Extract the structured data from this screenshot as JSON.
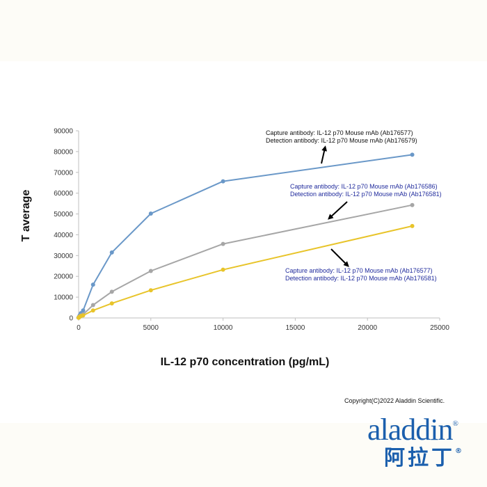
{
  "chart_data": {
    "type": "line",
    "xlabel": "IL-12 p70 concentration (pg/mL)",
    "ylabel": "T average",
    "xlim": [
      0,
      25000
    ],
    "ylim": [
      0,
      90000
    ],
    "x_ticks": [
      0,
      5000,
      10000,
      15000,
      20000,
      25000
    ],
    "y_ticks": [
      0,
      10000,
      20000,
      30000,
      40000,
      50000,
      60000,
      70000,
      80000,
      90000
    ],
    "grid": false,
    "series": [
      {
        "color": "#6a98c8",
        "x": [
          0,
          20,
          40,
          80,
          160,
          312,
          1000,
          2300,
          5000,
          10000,
          23100
        ],
        "y": [
          200,
          400,
          700,
          1300,
          2300,
          3600,
          16000,
          31500,
          50200,
          65700,
          78500
        ]
      },
      {
        "color": "#a6a6a6",
        "x": [
          0,
          20,
          40,
          80,
          160,
          312,
          1000,
          2300,
          5000,
          10000,
          23100
        ],
        "y": [
          150,
          300,
          500,
          800,
          1200,
          1700,
          6200,
          12600,
          22600,
          35600,
          54300
        ]
      },
      {
        "color": "#e8c42a",
        "x": [
          0,
          20,
          40,
          80,
          160,
          312,
          1000,
          2300,
          5000,
          10000,
          23100
        ],
        "y": [
          100,
          200,
          350,
          600,
          900,
          1200,
          3600,
          7000,
          13300,
          23200,
          44200
        ]
      }
    ],
    "annotations": [
      {
        "color": "#111111",
        "line1": "Capture antibody: IL-12 p70 Mouse mAb (Ab176577)",
        "line2": "Detection antibody: IL-12 p70 Mouse mAb (Ab176579)"
      },
      {
        "color": "#1f2a9c",
        "line1": "Capture antibody: IL-12 p70 Mouse mAb (Ab176586)",
        "line2": "Detection antibody: IL-12 p70 Mouse mAb (Ab176581)"
      },
      {
        "color": "#1f2a9c",
        "line1": "Capture antibody: IL-12 p70 Mouse mAb (Ab176577)",
        "line2": "Detection antibody: IL-12 p70 Mouse mAb (Ab176581)"
      }
    ]
  },
  "copyright": "Copyright(C)2022 Aladdin Scientific.",
  "logo": {
    "name_en": "aladdin",
    "name_cn": "阿拉丁",
    "reg_mark": "®",
    "color": "#1b5fad"
  }
}
